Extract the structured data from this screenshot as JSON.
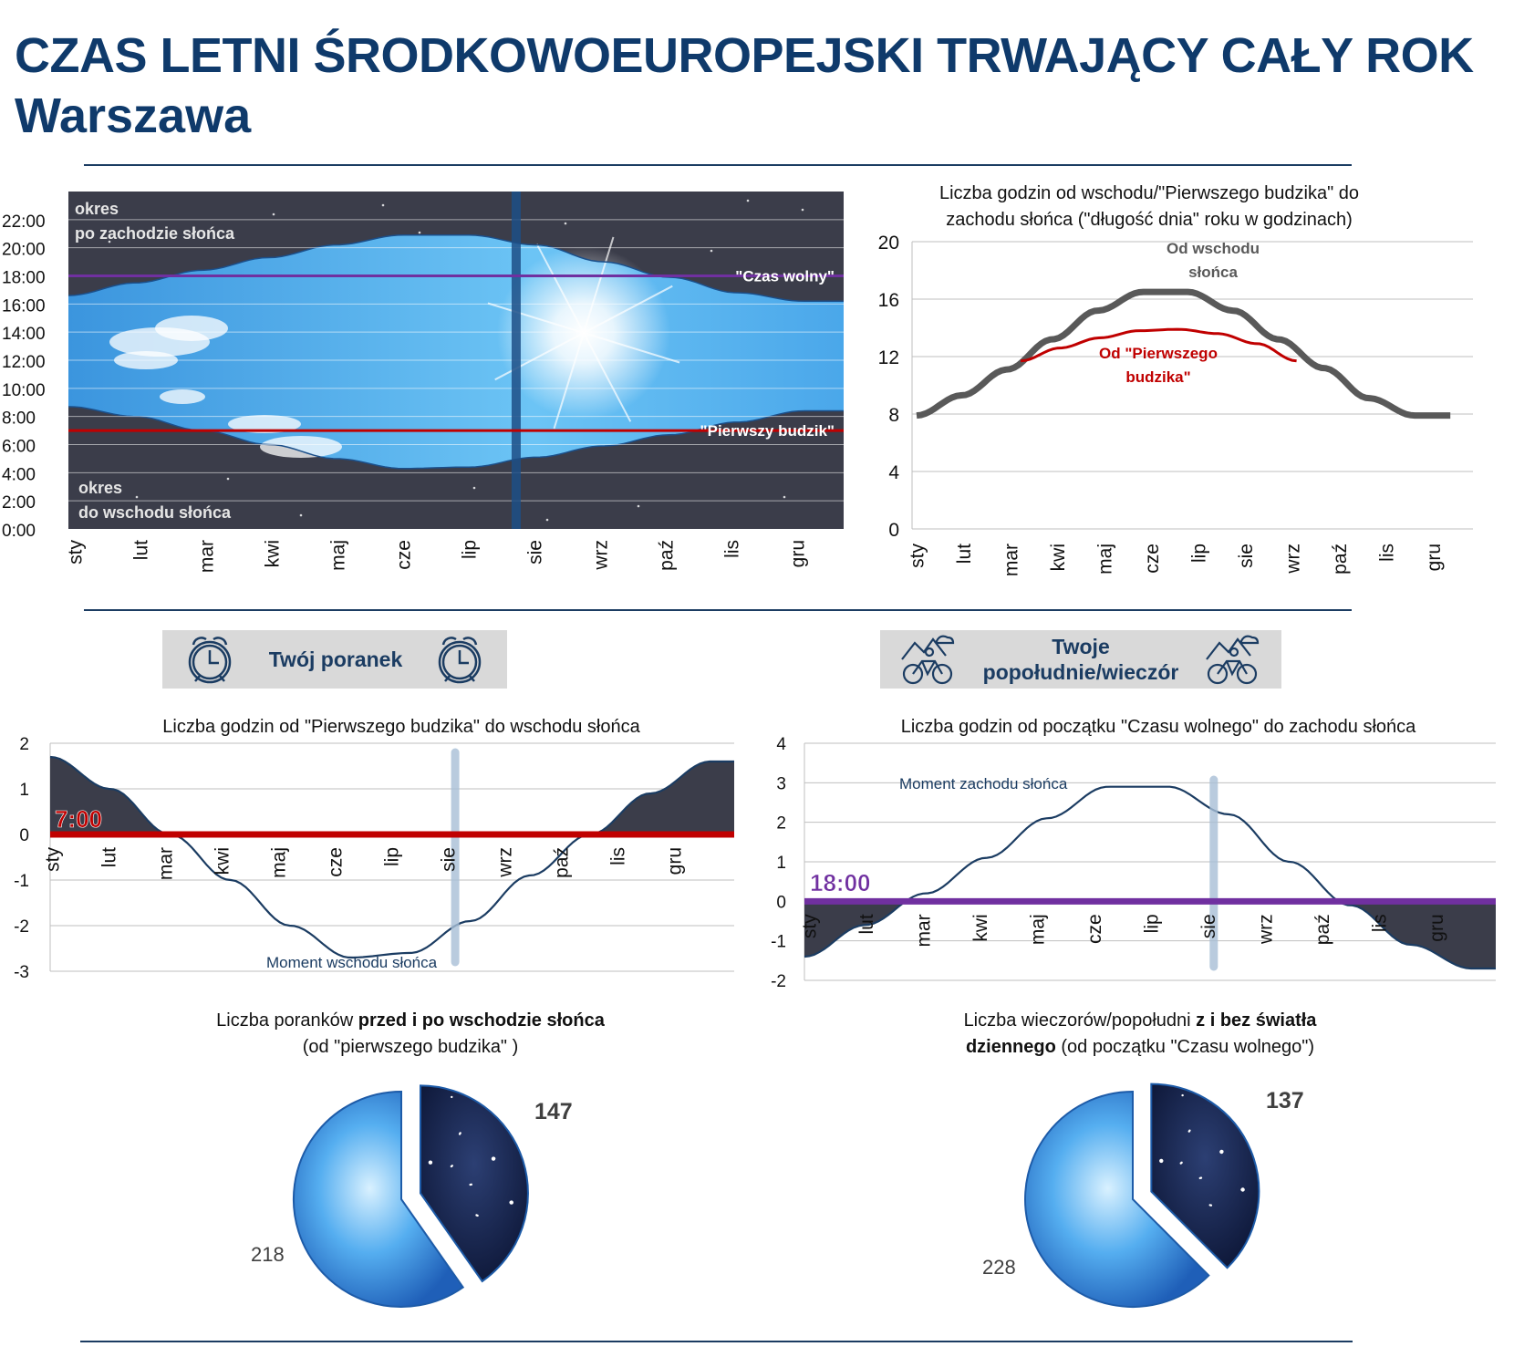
{
  "header": {
    "title": "CZAS LETNI ŚRODKOWOEUROPEJSKI TRWAJĄCY CAŁY ROK",
    "subtitle": "Warszawa"
  },
  "months": [
    "sty",
    "lut",
    "mar",
    "kwi",
    "maj",
    "cze",
    "lip",
    "sie",
    "wrz",
    "paź",
    "lis",
    "gru"
  ],
  "colors": {
    "navy": "#1b3c62",
    "red": "#c00000",
    "purple": "#7030a0",
    "gray_line": "#595959",
    "night": "#3b3d4a",
    "sky": "#3fa3e6"
  },
  "chart_data": [
    {
      "id": "day-band",
      "type": "area",
      "yticks": [
        "22:00",
        "20:00",
        "18:00",
        "16:00",
        "14:00",
        "12:00",
        "10:00",
        "8:00",
        "6:00",
        "4:00",
        "2:00",
        "0:00"
      ],
      "ylim": [
        0,
        24
      ],
      "x": [
        "sty",
        "lut",
        "mar",
        "kwi",
        "maj",
        "cze",
        "lip",
        "sie",
        "wrz",
        "paź",
        "lis",
        "gru"
      ],
      "sunrise_hours": [
        8.7,
        8.0,
        7.0,
        6.0,
        5.0,
        4.3,
        4.4,
        5.1,
        5.9,
        6.7,
        7.6,
        8.4
      ],
      "sunset_hours": [
        16.6,
        17.5,
        18.4,
        19.3,
        20.2,
        20.9,
        20.9,
        20.2,
        19.0,
        17.9,
        16.8,
        16.2
      ],
      "lines": [
        {
          "name": "\"Czas wolny\"",
          "value": 18
        },
        {
          "name": "\"Pierwszy budzik\"",
          "value": 7
        }
      ],
      "annotations": {
        "top_line1": "okres",
        "top_line2": "po zachodzie słońca",
        "bottom_line1": "okres",
        "bottom_line2": "do wschodu słońca"
      },
      "marker_month_index": 6.7
    },
    {
      "id": "day-length",
      "type": "line",
      "title_line1": "Liczba godzin od wschodu/\"Pierwszego budzika\" do",
      "title_line2": "zachodu słońca (\"długość dnia\" roku w godzinach)",
      "yticks": [
        "20",
        "16",
        "12",
        "8",
        "4",
        "0"
      ],
      "ylim": [
        0,
        20
      ],
      "x": [
        "sty",
        "lut",
        "mar",
        "kwi",
        "maj",
        "cze",
        "lip",
        "sie",
        "wrz",
        "paź",
        "lis",
        "gru"
      ],
      "series": [
        {
          "name": "Od wschodu słońca",
          "label_line1": "Od wschodu",
          "label_line2": "słońca",
          "values": [
            7.9,
            9.3,
            11.1,
            13.2,
            15.2,
            16.5,
            16.5,
            15.2,
            13.2,
            11.2,
            9.1,
            7.9
          ]
        },
        {
          "name": "Od \"Pierwszego budzika\"",
          "label_line1": "Od \"Pierwszego",
          "label_line2": "budzika\"",
          "x_range": [
            2.3,
            8.4
          ],
          "values_range": [
            11.7,
            12.6,
            13.3,
            13.8,
            13.9,
            13.6,
            12.9,
            11.7
          ]
        }
      ]
    },
    {
      "id": "morning",
      "type": "line",
      "title": "Liczba godzin od \"Pierwszego budzika\" do wschodu słońca",
      "yticks": [
        "2",
        "1",
        "0",
        "-1",
        "-2",
        "-3"
      ],
      "ylim": [
        -3,
        2
      ],
      "x": [
        "sty",
        "lut",
        "mar",
        "kwi",
        "maj",
        "cze",
        "lip",
        "sie",
        "wrz",
        "paź",
        "lis",
        "gru"
      ],
      "values": [
        1.7,
        1.0,
        0.0,
        -1.0,
        -2.0,
        -2.7,
        -2.6,
        -1.9,
        -0.9,
        0.0,
        0.9,
        1.6
      ],
      "reference_label": "7:00",
      "curve_label": "Moment wschodu słońca"
    },
    {
      "id": "evening",
      "type": "line",
      "title": "Liczba godzin od początku \"Czasu wolnego\" do zachodu słońca",
      "yticks": [
        "4",
        "3",
        "2",
        "1",
        "0",
        "-1",
        "-2"
      ],
      "ylim": [
        -2,
        4
      ],
      "x": [
        "sty",
        "lut",
        "mar",
        "kwi",
        "maj",
        "cze",
        "lip",
        "sie",
        "wrz",
        "paź",
        "lis",
        "gru"
      ],
      "values": [
        -1.4,
        -0.6,
        0.2,
        1.1,
        2.1,
        2.9,
        2.9,
        2.2,
        1.0,
        -0.1,
        -1.1,
        -1.7
      ],
      "reference_label": "18:00",
      "curve_label": "Moment zachodu słońca"
    },
    {
      "id": "pie-morning",
      "type": "pie",
      "values": [
        218,
        147
      ],
      "labels": [
        "218",
        "147"
      ]
    },
    {
      "id": "pie-evening",
      "type": "pie",
      "values": [
        228,
        137
      ],
      "labels": [
        "228",
        "137"
      ]
    }
  ],
  "sections": {
    "morning_label": "Twój poranek",
    "evening_label_line1": "Twoje",
    "evening_label_line2": "popołudnie/wieczór"
  },
  "pies": {
    "morning_title_a": "Liczba poranków ",
    "morning_title_b": "przed i po wschodzie słońca",
    "morning_title_c": "(od \"pierwszego budzika\" )",
    "evening_title_a": "Liczba wieczorów/popołudni ",
    "evening_title_b": "z i bez światła",
    "evening_title_c": "dziennego",
    "evening_title_d": " (od początku \"Czasu wolnego\")"
  }
}
